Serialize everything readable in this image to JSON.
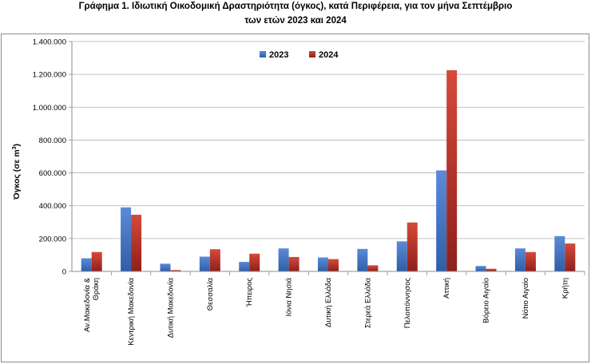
{
  "chart_data": {
    "type": "bar",
    "title_line1": "Γράφημα 1.  Ιδιωτική Οικοδομική Δραστηριότητα (όγκος), κατά Περιφέρεια, για τον μήνα Σεπτέμβριο",
    "title_line2": "των ετών 2023 και 2024",
    "ylabel_text": "Όγκος (σε  m",
    "ylabel_sup": "3",
    "ylabel_close": ")",
    "ylim": [
      0,
      1400000
    ],
    "yticks": [
      0,
      200000,
      400000,
      600000,
      800000,
      1000000,
      1200000,
      1400000
    ],
    "ytick_labels": [
      "0",
      "200.000",
      "400.000",
      "600.000",
      "800.000",
      "1.000.000",
      "1.200.000",
      "1.400.000"
    ],
    "grid": true,
    "legend_position": "top-center",
    "categories": [
      [
        "Αν.Μακεδονία &",
        "Θράκη"
      ],
      [
        "Κεντρική Μακεδονία"
      ],
      [
        "Δυτική Μακεδονία"
      ],
      [
        "Θεσσαλία"
      ],
      [
        "Ήπειρος"
      ],
      [
        "Ιόνια Νησιά"
      ],
      [
        "Δυτική Ελλάδα"
      ],
      [
        "Στερεά Ελλάδα"
      ],
      [
        "Πελοπόννησος"
      ],
      [
        "Αττική"
      ],
      [
        "Βόρειο Αιγαίο"
      ],
      [
        "Νότιο Αιγαίο"
      ],
      [
        "Κρήτη"
      ]
    ],
    "series": [
      {
        "name": "2023",
        "color": "#4472c4",
        "values": [
          80000,
          390000,
          47000,
          90000,
          58000,
          140000,
          85000,
          137000,
          183000,
          615000,
          33000,
          140000,
          215000
        ]
      },
      {
        "name": "2024",
        "color": "#c0392b",
        "values": [
          118000,
          345000,
          8000,
          135000,
          108000,
          88000,
          75000,
          37000,
          298000,
          1225000,
          16000,
          118000,
          170000
        ]
      }
    ]
  }
}
